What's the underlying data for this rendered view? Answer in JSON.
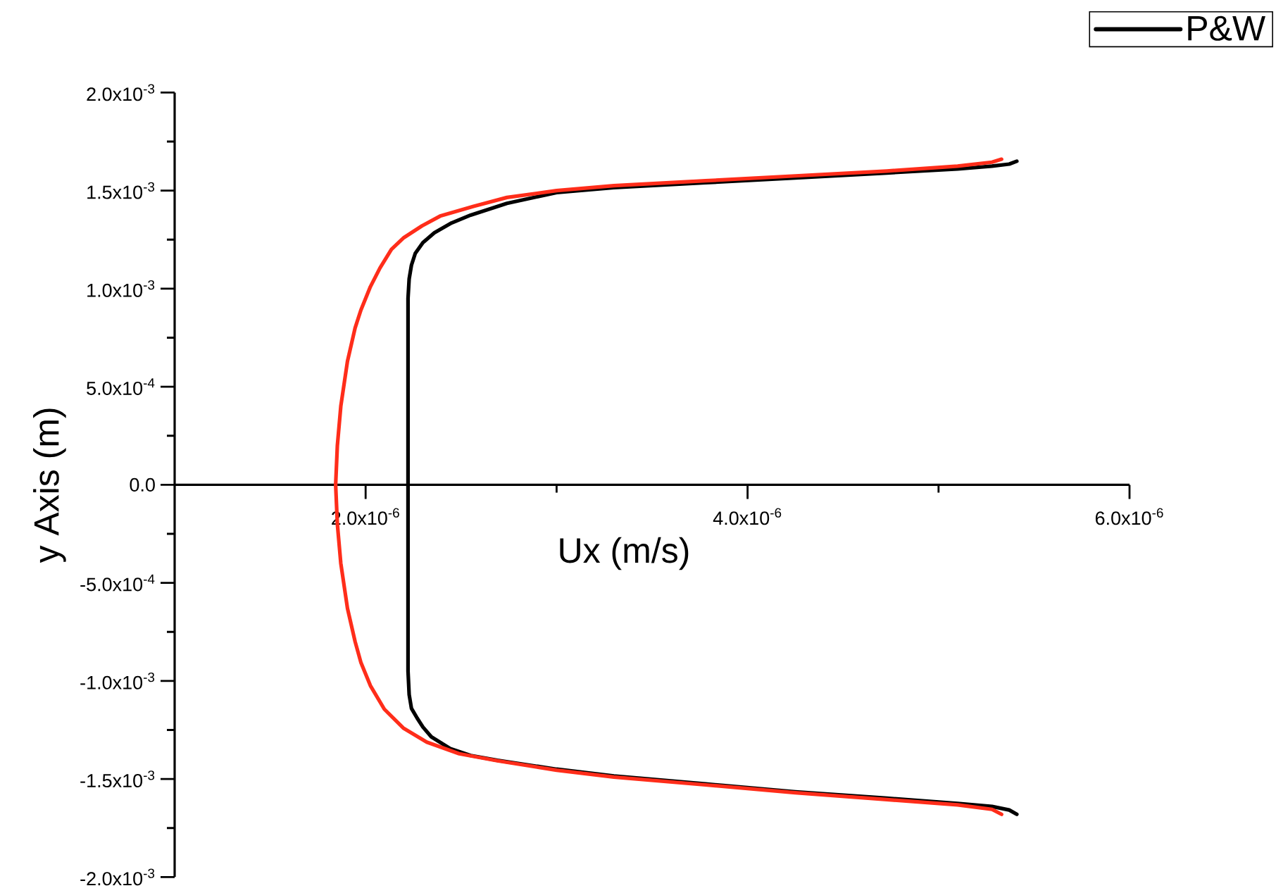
{
  "chart_data": {
    "type": "line",
    "xlabel": "Ux (m/s)",
    "ylabel": "y Axis (m)",
    "xlim": [
      1e-06,
      6e-06
    ],
    "ylim": [
      -0.002,
      0.002
    ],
    "xticks": [
      {
        "value": 2e-06,
        "label": "2.0x10$^{-6}$"
      },
      {
        "value": 3e-06,
        "label": null
      },
      {
        "value": 4e-06,
        "label": "4.0x10$^{-6}$"
      },
      {
        "value": 5e-06,
        "label": null
      },
      {
        "value": 6e-06,
        "label": "6.0x10$^{-6}$"
      }
    ],
    "yticks": [
      {
        "value": -0.002,
        "label": "-2.0x10$^{-3}$"
      },
      {
        "value": -0.00175,
        "label": null
      },
      {
        "value": -0.0015,
        "label": "-1.5x10$^{-3}$"
      },
      {
        "value": -0.00125,
        "label": null
      },
      {
        "value": -0.001,
        "label": "-1.0x10$^{-3}$"
      },
      {
        "value": -0.00075,
        "label": null
      },
      {
        "value": -0.0005,
        "label": "-5.0x10$^{-4}$"
      },
      {
        "value": -0.00025,
        "label": null
      },
      {
        "value": 0,
        "label": "0.0"
      },
      {
        "value": 0.00025,
        "label": null
      },
      {
        "value": 0.0005,
        "label": "5.0x10$^{-4}$"
      },
      {
        "value": 0.00075,
        "label": null
      },
      {
        "value": 0.001,
        "label": "1.0x10$^{-3}$"
      },
      {
        "value": 0.00125,
        "label": null
      },
      {
        "value": 0.0015,
        "label": "1.5x10$^{-3}$"
      },
      {
        "value": 0.00175,
        "label": null
      },
      {
        "value": 0.002,
        "label": "2.0x10$^{-3}$"
      }
    ],
    "legend": "top right",
    "series": [
      {
        "name": "P&W",
        "color": "#000000",
        "x": [
          5.41e-06,
          5.37e-06,
          5.28e-06,
          5.1e-06,
          4.73e-06,
          4.25e-06,
          3.78e-06,
          3.3e-06,
          3e-06,
          2.74e-06,
          2.55e-06,
          2.45e-06,
          2.36e-06,
          2.3e-06,
          2.26e-06,
          2.24e-06,
          2.228e-06,
          2.222e-06,
          2.222e-06,
          2.228e-06,
          2.24e-06,
          2.27e-06,
          2.3e-06,
          2.344e-06,
          2.443e-06,
          2.55e-06,
          2.69e-06,
          3e-06,
          3.3e-06,
          3.78e-06,
          4.25e-06,
          4.73e-06,
          5.1e-06,
          5.28e-06,
          5.37e-06,
          5.41e-06
        ],
        "values": [
          0.00165,
          0.001635,
          0.001625,
          0.00161,
          0.00159,
          0.001565,
          0.00154,
          0.001515,
          0.00149,
          0.001435,
          0.001375,
          0.001335,
          0.001285,
          0.001235,
          0.00118,
          0.00112,
          0.00105,
          0.00095,
          -0.00095,
          -0.00107,
          -0.00114,
          -0.00119,
          -0.001235,
          -0.001285,
          -0.001345,
          -0.00138,
          -0.001405,
          -0.00145,
          -0.001485,
          -0.001525,
          -0.001565,
          -0.001598,
          -0.001625,
          -0.00164,
          -0.001658,
          -0.00168
        ]
      },
      {
        "color": "#ff2d1a",
        "x": [
          5.33e-06,
          5.28e-06,
          5.1e-06,
          4.73e-06,
          4.25e-06,
          3.78e-06,
          3.3e-06,
          3e-06,
          2.74e-06,
          2.565e-06,
          2.39e-06,
          2.295e-06,
          2.2e-06,
          2.135e-06,
          2.075e-06,
          2.025e-06,
          1.975e-06,
          1.945e-06,
          1.905e-06,
          1.87e-06,
          1.852e-06,
          1.843e-06,
          1.852e-06,
          1.87e-06,
          1.905e-06,
          1.945e-06,
          1.975e-06,
          2.025e-06,
          2.098e-06,
          2.197e-06,
          2.32e-06,
          2.49e-06,
          2.69e-06,
          3e-06,
          3.3e-06,
          3.78e-06,
          4.25e-06,
          4.73e-06,
          5.1e-06,
          5.28e-06,
          5.33e-06
        ],
        "values": [
          0.00166,
          0.001645,
          0.001625,
          0.0016,
          0.001575,
          0.00155,
          0.001525,
          0.0015,
          0.001465,
          0.00142,
          0.00137,
          0.00132,
          0.00126,
          0.0012,
          0.001105,
          0.00101,
          0.00089,
          0.0008,
          0.00063,
          0.0004,
          0.0002,
          0,
          -0.0002,
          -0.0004,
          -0.00063,
          -0.0008,
          -0.000905,
          -0.001024,
          -0.001144,
          -0.00124,
          -0.001312,
          -0.001371,
          -0.001407,
          -0.001455,
          -0.00149,
          -0.00153,
          -0.00157,
          -0.001605,
          -0.001632,
          -0.001655,
          -0.00168
        ]
      }
    ]
  }
}
